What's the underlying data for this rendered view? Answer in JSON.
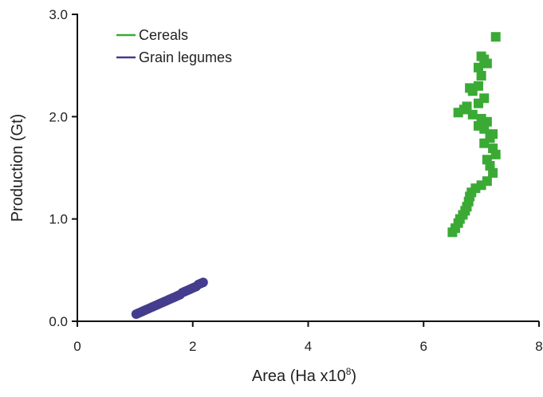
{
  "chart_data": {
    "type": "scatter",
    "title": "",
    "xlabel": "Area (Ha x10",
    "xlabel_superscript": "8",
    "xlabel_suffix": ")",
    "ylabel": "Production (Gt)",
    "xlim": [
      0,
      8
    ],
    "ylim": [
      0,
      3.0
    ],
    "x_ticks": [
      "0",
      "2",
      "4",
      "6",
      "8"
    ],
    "y_ticks": [
      "0.0",
      "1.0",
      "2.0",
      "3.0"
    ],
    "grid": false,
    "legend_position": "top-left",
    "series": [
      {
        "name": "Cereals",
        "color": "#3aaa35",
        "marker": "square",
        "points": [
          [
            6.5,
            0.87
          ],
          [
            6.55,
            0.91
          ],
          [
            6.6,
            0.96
          ],
          [
            6.63,
            1.0
          ],
          [
            6.68,
            1.04
          ],
          [
            6.72,
            1.08
          ],
          [
            6.75,
            1.12
          ],
          [
            6.78,
            1.17
          ],
          [
            6.8,
            1.22
          ],
          [
            6.83,
            1.26
          ],
          [
            6.9,
            1.3
          ],
          [
            7.0,
            1.33
          ],
          [
            7.1,
            1.37
          ],
          [
            7.2,
            1.45
          ],
          [
            7.15,
            1.52
          ],
          [
            7.1,
            1.58
          ],
          [
            7.25,
            1.63
          ],
          [
            7.2,
            1.69
          ],
          [
            7.05,
            1.74
          ],
          [
            7.15,
            1.79
          ],
          [
            7.2,
            1.83
          ],
          [
            7.05,
            1.88
          ],
          [
            6.95,
            1.91
          ],
          [
            7.1,
            1.95
          ],
          [
            7.0,
            1.98
          ],
          [
            6.85,
            2.02
          ],
          [
            6.6,
            2.04
          ],
          [
            6.7,
            2.07
          ],
          [
            6.75,
            2.1
          ],
          [
            6.95,
            2.13
          ],
          [
            7.05,
            2.18
          ],
          [
            6.85,
            2.25
          ],
          [
            6.8,
            2.28
          ],
          [
            6.95,
            2.3
          ],
          [
            7.0,
            2.4
          ],
          [
            6.95,
            2.48
          ],
          [
            7.1,
            2.52
          ],
          [
            7.05,
            2.56
          ],
          [
            7.0,
            2.59
          ],
          [
            7.25,
            2.78
          ]
        ]
      },
      {
        "name": "Grain legumes",
        "color": "#443c8c",
        "marker": "circle",
        "points": [
          [
            1.02,
            0.07
          ],
          [
            1.06,
            0.08
          ],
          [
            1.1,
            0.09
          ],
          [
            1.14,
            0.1
          ],
          [
            1.18,
            0.11
          ],
          [
            1.22,
            0.12
          ],
          [
            1.26,
            0.13
          ],
          [
            1.3,
            0.14
          ],
          [
            1.34,
            0.15
          ],
          [
            1.38,
            0.16
          ],
          [
            1.42,
            0.17
          ],
          [
            1.46,
            0.18
          ],
          [
            1.5,
            0.19
          ],
          [
            1.54,
            0.2
          ],
          [
            1.58,
            0.21
          ],
          [
            1.62,
            0.22
          ],
          [
            1.66,
            0.23
          ],
          [
            1.7,
            0.24
          ],
          [
            1.74,
            0.25
          ],
          [
            1.78,
            0.26
          ],
          [
            1.82,
            0.28
          ],
          [
            1.86,
            0.29
          ],
          [
            1.9,
            0.3
          ],
          [
            1.94,
            0.31
          ],
          [
            1.98,
            0.32
          ],
          [
            2.02,
            0.33
          ],
          [
            2.06,
            0.34
          ],
          [
            2.1,
            0.36
          ],
          [
            2.14,
            0.37
          ],
          [
            2.18,
            0.38
          ]
        ]
      }
    ]
  }
}
